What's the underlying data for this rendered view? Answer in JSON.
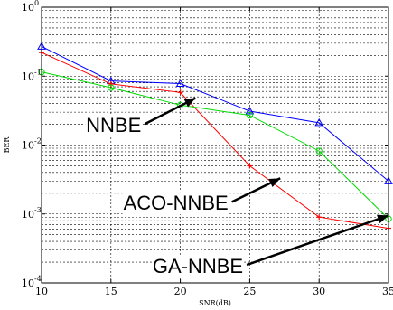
{
  "chart_data": {
    "type": "line",
    "title": "",
    "xlabel": "SNR(dB)",
    "ylabel": "BER",
    "x": [
      10,
      15,
      20,
      25,
      30,
      35
    ],
    "xlim": [
      10,
      35
    ],
    "ylim": [
      0.0001,
      1
    ],
    "yscale": "log",
    "grid": true,
    "x_ticks": [
      "10",
      "15",
      "20",
      "25",
      "30",
      "35"
    ],
    "y_ticks": [
      {
        "base": "10",
        "exp": "0"
      },
      {
        "base": "10",
        "exp": "-1"
      },
      {
        "base": "10",
        "exp": "-2"
      },
      {
        "base": "10",
        "exp": "-3"
      },
      {
        "base": "10",
        "exp": "-4"
      }
    ],
    "series": [
      {
        "color": "#0000ff",
        "marker": "triangle",
        "values": [
          0.27,
          0.085,
          0.078,
          0.031,
          0.021,
          0.003
        ]
      },
      {
        "color": "#ff0000",
        "marker": "plus",
        "values": [
          0.22,
          0.077,
          0.058,
          0.005,
          0.0009,
          0.00062
        ]
      },
      {
        "color": "#00dd00",
        "marker": "circle",
        "values": [
          0.115,
          0.068,
          0.038,
          0.027,
          0.0082,
          0.00085
        ]
      }
    ],
    "annotations": [
      {
        "text": "NNBE",
        "x": 13.2,
        "y": 0.0155,
        "arrow_to": [
          21.1,
          0.048
        ]
      },
      {
        "text": "ACO-NNBE",
        "x": 15.9,
        "y": 0.00115,
        "arrow_to": [
          27.2,
          0.0033
        ]
      },
      {
        "text": "GA-NNBE",
        "x": 18.0,
        "y": 0.00014,
        "arrow_to": [
          35,
          0.00095
        ]
      }
    ]
  }
}
